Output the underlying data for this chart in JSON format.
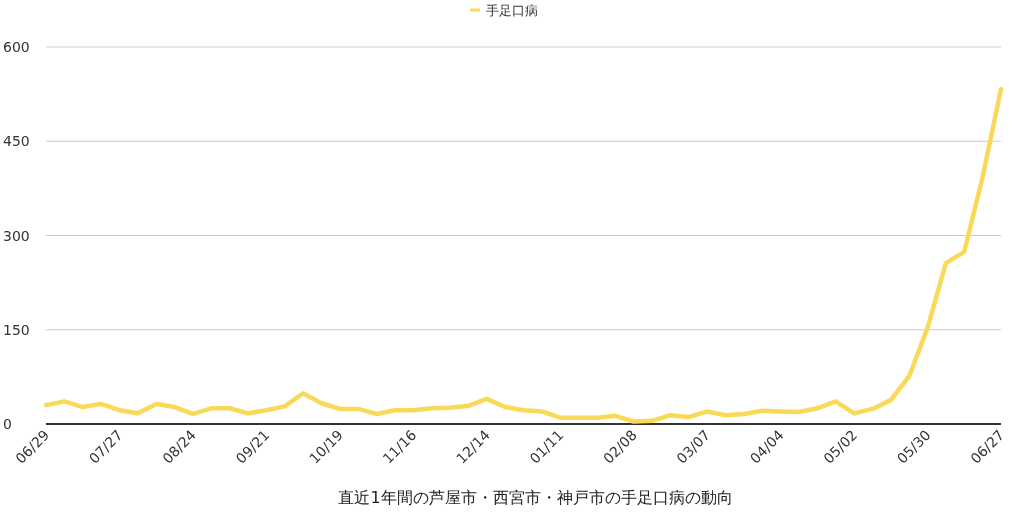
{
  "chart_data": {
    "type": "line",
    "xlabel": "直近1年間の芦屋市・西宮市・神戸市の手足口病の動向",
    "categories": [
      "06/29",
      null,
      null,
      null,
      "07/27",
      null,
      null,
      null,
      "08/24",
      null,
      null,
      null,
      "09/21",
      null,
      null,
      null,
      "10/19",
      null,
      null,
      null,
      "11/16",
      null,
      null,
      null,
      "12/14",
      null,
      null,
      null,
      "01/11",
      null,
      null,
      null,
      "02/08",
      null,
      null,
      null,
      "03/07",
      null,
      null,
      null,
      "04/04",
      null,
      null,
      null,
      "05/02",
      null,
      null,
      null,
      "05/30",
      null,
      null,
      null,
      "06/27"
    ],
    "series": [
      {
        "name": "手足口病",
        "color": "#f9da58",
        "values": [
          30,
          36,
          27,
          32,
          22,
          17,
          32,
          27,
          16,
          25,
          25,
          17,
          22,
          28,
          49,
          33,
          24,
          24,
          16,
          22,
          22,
          25,
          26,
          29,
          40,
          27,
          22,
          20,
          10,
          10,
          10,
          13,
          4,
          5,
          14,
          11,
          20,
          14,
          16,
          21,
          20,
          19,
          25,
          36,
          17,
          24,
          38,
          76,
          153,
          256,
          274,
          393,
          533
        ]
      }
    ],
    "ylim": [
      0,
      600
    ],
    "yticks": [
      0,
      150,
      300,
      450,
      600
    ],
    "grid": "y",
    "legend": "top"
  }
}
